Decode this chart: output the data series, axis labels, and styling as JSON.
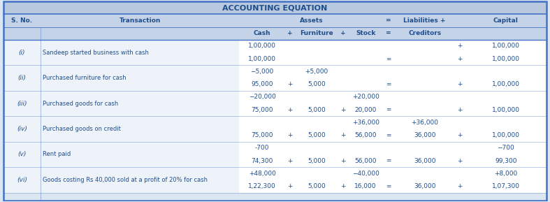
{
  "title": "ACCOUNTING EQUATION",
  "header_bg": "#c5d3e8",
  "title_bg": "#b8c8de",
  "border_color": "#4472c4",
  "text_color": "#1f4e8c",
  "outer_bg": "#dce6f1",
  "rows": [
    {
      "sno": "(i)",
      "transaction": "Sandeep started business with cash",
      "change": {
        "cash": "1,00,000",
        "furniture": "",
        "stock": "",
        "eq": "",
        "creditors": "",
        "plus": "+",
        "capital": "1,00,000"
      },
      "balance": {
        "cash": "1,00,000",
        "furniture": "",
        "stock": "",
        "eq": "=",
        "creditors": "",
        "plus": "+",
        "capital": "1,00,000"
      }
    },
    {
      "sno": "(ii)",
      "transaction": "Purchased furniture for cash",
      "change": {
        "cash": "−5,000",
        "furniture": "+5,000",
        "stock": "",
        "eq": "",
        "creditors": "",
        "plus": "",
        "capital": ""
      },
      "balance": {
        "cash": "95,000",
        "furniture": "5,000",
        "stock": "",
        "eq": "=",
        "creditors": "",
        "plus": "+",
        "capital": "1,00,000"
      }
    },
    {
      "sno": "(iii)",
      "transaction": "Purchased goods for cash",
      "change": {
        "cash": "−20,000",
        "furniture": "",
        "stock": "+20,000",
        "eq": "",
        "creditors": "",
        "plus": "",
        "capital": ""
      },
      "balance": {
        "cash": "75,000",
        "furniture": "5,000",
        "stock": "20,000",
        "eq": "=",
        "creditors": "",
        "plus": "+",
        "capital": "1,00,000"
      }
    },
    {
      "sno": "(iv)",
      "transaction": "Purchased goods on credit",
      "change": {
        "cash": "",
        "furniture": "",
        "stock": "+36,000",
        "eq": "",
        "creditors": "+36,000",
        "plus": "",
        "capital": ""
      },
      "balance": {
        "cash": "75,000",
        "furniture": "5,000",
        "stock": "56,000",
        "eq": "=",
        "creditors": "36,000",
        "plus": "+",
        "capital": "1,00,000"
      }
    },
    {
      "sno": "(v)",
      "transaction": "Rent paid",
      "change": {
        "cash": "-700",
        "furniture": "",
        "stock": "",
        "eq": "",
        "creditors": "",
        "plus": "",
        "capital": "−700"
      },
      "balance": {
        "cash": "74,300",
        "furniture": "5,000",
        "stock": "56,000",
        "eq": "=",
        "creditors": "36,000",
        "plus": "+",
        "capital": "99,300"
      }
    },
    {
      "sno": "(vi)",
      "transaction": "Goods costing Rs 40,000 sold at a profit of 20% for cash",
      "change": {
        "cash": "+48,000",
        "furniture": "",
        "stock": "−40,000",
        "eq": "",
        "creditors": "",
        "plus": "",
        "capital": "+8,000"
      },
      "balance": {
        "cash": "1,22,300",
        "furniture": "5,000",
        "stock": "16,000",
        "eq": "=",
        "creditors": "36,000",
        "plus": "+",
        "capital": "1,07,300"
      }
    }
  ]
}
